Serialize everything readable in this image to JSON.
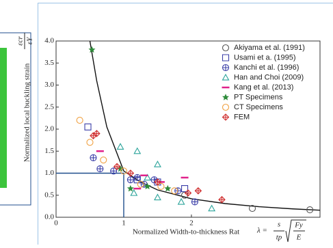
{
  "chart_data": {
    "type": "scatter",
    "y_label": "Normalized local buckling strain",
    "x_label": "Normalized Width-to-thickness Rat",
    "y_formula": {
      "numerator": "εcr",
      "denominator": "εY"
    },
    "x_formula": {
      "lhs": "λ =",
      "numerator": "s",
      "denominator": "tp",
      "root_numerator": "Fy",
      "root_denominator": "E"
    },
    "xlim": [
      0,
      3.9
    ],
    "ylim": [
      0,
      4.0
    ],
    "xticks": [
      0,
      1,
      2
    ],
    "yticks": [
      {
        "value": 0,
        "label": "0.0"
      },
      {
        "value": 0.5,
        "label": "0.5"
      },
      {
        "value": 1,
        "label": "1.0"
      },
      {
        "value": 1.5,
        "label": "1.5"
      },
      {
        "value": 2,
        "label": "2.0"
      },
      {
        "value": 2.5,
        "label": "2.5"
      },
      {
        "value": 3,
        "label": "3.0"
      },
      {
        "value": 3.5,
        "label": "3.5"
      },
      {
        "value": 4,
        "label": "4.0"
      }
    ],
    "legend": "top-right",
    "curve": {
      "color": "#111111",
      "x": [
        0.5,
        0.6,
        0.75,
        1,
        1.25,
        1.5,
        2,
        2.5,
        3,
        3.5,
        3.9
      ],
      "y": [
        4.0,
        3.1,
        2.05,
        1.05,
        0.8,
        0.62,
        0.42,
        0.31,
        0.24,
        0.19,
        0.16
      ]
    },
    "reference_box": {
      "color": "#1f4e8c",
      "x": [
        0,
        1,
        1
      ],
      "y": [
        1,
        1,
        0
      ]
    },
    "series": [
      {
        "name": "Akiyama et al. (1991)",
        "color": "#555555",
        "marker": "circle",
        "x": [
          1.9,
          2.9,
          3.75
        ],
        "values": [
          0.5,
          0.2,
          0.17
        ]
      },
      {
        "name": "Usami et a. (1995)",
        "color": "#3b3fa8",
        "marker": "square",
        "x": [
          0.47,
          1.2,
          1.5,
          1.9
        ],
        "values": [
          2.05,
          0.85,
          0.8,
          0.65
        ]
      },
      {
        "name": "Kanchi et al. (1996)",
        "color": "#3b3fa8",
        "marker": "circle-plus",
        "x": [
          0.55,
          0.65,
          0.85,
          1.1,
          1.2,
          1.3,
          1.45,
          1.8,
          2.05
        ],
        "values": [
          1.35,
          1.1,
          1.05,
          0.85,
          0.9,
          0.75,
          0.85,
          0.6,
          0.35
        ]
      },
      {
        "name": "Han and Choi (2009)",
        "color": "#2aa39a",
        "marker": "triangle",
        "x": [
          0.95,
          1.2,
          1.5,
          1.15,
          1.5,
          1.85,
          2.3,
          1.35
        ],
        "values": [
          1.6,
          1.5,
          1.2,
          0.55,
          0.45,
          0.35,
          0.2,
          0.9
        ]
      },
      {
        "name": "Kang et al. (2013)",
        "color": "#e0218a",
        "marker": "dash",
        "x": [
          0.65,
          1.2,
          1.3,
          1.55,
          1.9
        ],
        "values": [
          1.5,
          0.65,
          0.95,
          0.8,
          0.9
        ]
      },
      {
        "name": "PT Specimens",
        "color": "#2e8b3a",
        "marker": "star",
        "x": [
          0.53,
          0.95,
          1.1,
          1.35,
          1.65
        ],
        "values": [
          3.8,
          1.1,
          0.65,
          0.7,
          0.65
        ]
      },
      {
        "name": "CT Specimens",
        "color": "#f0a040",
        "marker": "circle",
        "x": [
          0.35,
          0.5,
          0.7,
          1.0,
          1.25,
          1.55,
          1.75
        ],
        "values": [
          2.2,
          1.7,
          1.3,
          1.05,
          0.75,
          0.7,
          0.6
        ]
      },
      {
        "name": "FEM",
        "color": "#d03030",
        "marker": "diamond",
        "x": [
          0.55,
          0.6,
          0.9,
          1.1,
          1.5,
          1.95,
          2.1,
          2.45
        ],
        "values": [
          1.85,
          1.9,
          1.15,
          1.0,
          0.8,
          0.55,
          0.6,
          0.4
        ]
      }
    ]
  }
}
